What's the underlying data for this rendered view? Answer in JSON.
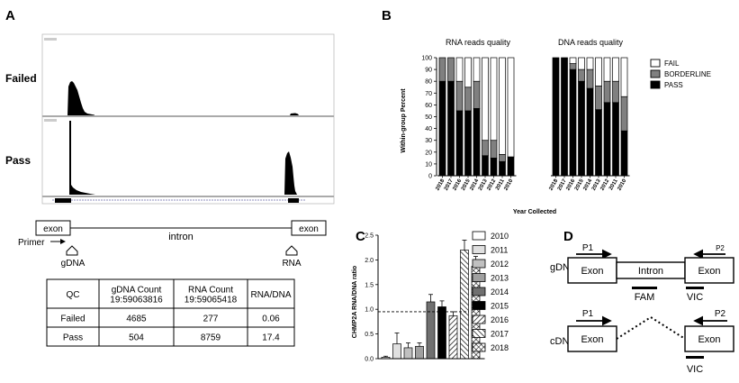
{
  "panels": {
    "a": {
      "letter": "A",
      "tracks": [
        {
          "label": "Failed"
        },
        {
          "label": "Pass"
        }
      ],
      "gene_model": {
        "exon_left": "exon",
        "exon_right": "exon",
        "intron": "intron",
        "primer": "Primer",
        "gdna": "gDNA",
        "rna": "RNA"
      },
      "table": {
        "headers": [
          "QC",
          "gDNA Count\n19:59063816",
          "RNA Count\n19:59065418",
          "RNA/DNA"
        ],
        "rows": [
          [
            "Failed",
            "4685",
            "277",
            "0.06"
          ],
          [
            "Pass",
            "504",
            "8759",
            "17.4"
          ]
        ]
      }
    },
    "b": {
      "letter": "B",
      "group_titles": [
        "RNA reads quality",
        "DNA reads quality"
      ],
      "ylabel": "Within-group Percent",
      "xlabel": "Year Collected",
      "legend": [
        {
          "name": "FAIL",
          "color": "#ffffff"
        },
        {
          "name": "BORDERLINE",
          "color": "#808080"
        },
        {
          "name": "PASS",
          "color": "#000000"
        }
      ]
    },
    "c": {
      "letter": "C",
      "ylabel": "CHMP2A RNA/DNA ratio"
    },
    "d": {
      "letter": "D",
      "row_gdna": {
        "label": "gDNA",
        "exon1": "Exon",
        "intron": "Intron",
        "exon2": "Exon",
        "p1": "P1",
        "p2": "P2",
        "probe1": "FAM",
        "probe2": "VIC"
      },
      "row_cdna": {
        "label": "cDNA",
        "exon1": "Exon",
        "exon2": "Exon",
        "p1": "P1",
        "p2": "P2",
        "probe": "VIC"
      }
    }
  },
  "chart_data": [
    {
      "type": "bar",
      "title": "RNA reads quality",
      "xlabel": "Year Collected",
      "ylabel": "Within-group Percent",
      "ylim": [
        0,
        100
      ],
      "yticks": [
        0,
        10,
        20,
        30,
        40,
        50,
        60,
        70,
        80,
        90,
        100
      ],
      "stacked": true,
      "categories": [
        "2018",
        "2017",
        "2016",
        "2015",
        "2014",
        "2013",
        "2012",
        "2011",
        "2010"
      ],
      "series": [
        {
          "name": "PASS",
          "values": [
            80,
            80,
            55,
            55,
            57,
            17,
            15,
            12,
            16
          ]
        },
        {
          "name": "BORDERLINE",
          "values": [
            20,
            20,
            25,
            20,
            23,
            13,
            15,
            6,
            0
          ]
        },
        {
          "name": "FAIL",
          "values": [
            0,
            0,
            20,
            25,
            20,
            70,
            70,
            82,
            84
          ]
        }
      ],
      "legend_position": "right"
    },
    {
      "type": "bar",
      "title": "DNA reads quality",
      "xlabel": "Year Collected",
      "ylabel": "Within-group Percent",
      "ylim": [
        0,
        100
      ],
      "stacked": true,
      "categories": [
        "2018",
        "2017",
        "2016",
        "2015",
        "2014",
        "2013",
        "2012",
        "2011",
        "2010"
      ],
      "series": [
        {
          "name": "PASS",
          "values": [
            100,
            100,
            90,
            80,
            74,
            56,
            62,
            62,
            38
          ]
        },
        {
          "name": "BORDERLINE",
          "values": [
            0,
            0,
            5,
            10,
            16,
            20,
            18,
            18,
            29
          ]
        },
        {
          "name": "FAIL",
          "values": [
            0,
            0,
            5,
            10,
            10,
            24,
            20,
            20,
            33
          ]
        }
      ],
      "legend_position": "right"
    },
    {
      "type": "bar",
      "ylabel": "CHMP2A RNA/DNA ratio",
      "ylim": [
        0,
        2.5
      ],
      "yticks": [
        0.0,
        0.5,
        1.0,
        1.5,
        2.0,
        2.5
      ],
      "categories": [
        "2010",
        "2011",
        "2012",
        "2013",
        "2014",
        "2015",
        "2016",
        "2017",
        "2018"
      ],
      "values": [
        0.03,
        0.3,
        0.22,
        0.25,
        1.15,
        1.05,
        0.87,
        2.2,
        1.87
      ],
      "errors": [
        0.02,
        0.22,
        0.1,
        0.07,
        0.15,
        0.12,
        0.08,
        0.2,
        0.2
      ],
      "reference_line": 0.95,
      "legend": [
        "2010",
        "2011",
        "2012",
        "2013",
        "2014",
        "2015",
        "2016",
        "2017",
        "2018"
      ],
      "legend_position": "right"
    }
  ]
}
